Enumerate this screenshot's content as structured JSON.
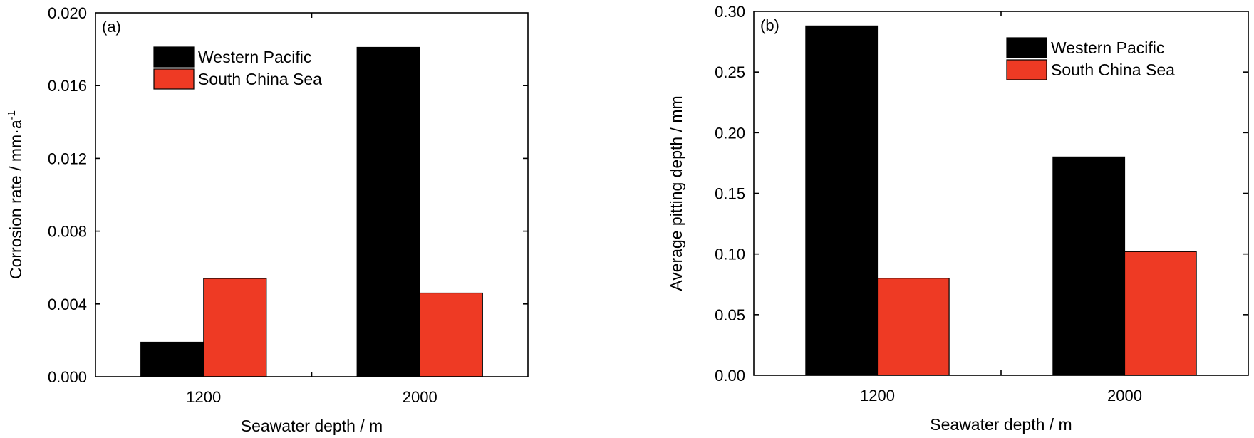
{
  "colors": {
    "western_pacific": "#000000",
    "south_china_sea": "#ee3a24",
    "axis": "#000000"
  },
  "chart_data": [
    {
      "type": "bar",
      "panel_label": "(a)",
      "categories": [
        "1200",
        "2000"
      ],
      "xlabel": "Seawater depth / m",
      "ylabel": "Corrosion rate / mm·a",
      "ylabel_superscript": "-1",
      "ylim": [
        0,
        0.02
      ],
      "yticks": [
        "0.000",
        "0.004",
        "0.008",
        "0.012",
        "0.016",
        "0.020"
      ],
      "legend_position": "top-left",
      "series": [
        {
          "name": "Western Pacific",
          "color": "#000000",
          "values": [
            0.0019,
            0.0181
          ]
        },
        {
          "name": "South China Sea",
          "color": "#ee3a24",
          "values": [
            0.0054,
            0.0046
          ]
        }
      ]
    },
    {
      "type": "bar",
      "panel_label": "(b)",
      "categories": [
        "1200",
        "2000"
      ],
      "xlabel": "Seawater depth / m",
      "ylabel": "Average pitting depth / mm",
      "ylabel_superscript": "",
      "ylim": [
        0,
        0.3
      ],
      "yticks": [
        "0.00",
        "0.05",
        "0.10",
        "0.15",
        "0.20",
        "0.25",
        "0.30"
      ],
      "legend_position": "top-right",
      "series": [
        {
          "name": "Western Pacific",
          "color": "#000000",
          "values": [
            0.288,
            0.18
          ]
        },
        {
          "name": "South China Sea",
          "color": "#ee3a24",
          "values": [
            0.08,
            0.102
          ]
        }
      ]
    }
  ]
}
